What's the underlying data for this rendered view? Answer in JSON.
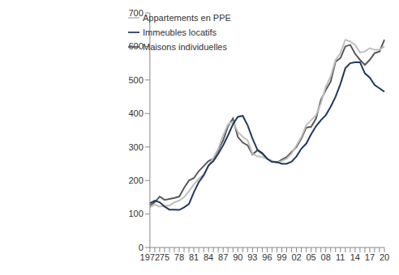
{
  "chart_data": {
    "type": "line",
    "categories": [
      "1972",
      null,
      null,
      "75",
      null,
      null,
      "78",
      null,
      null,
      "81",
      null,
      null,
      "84",
      null,
      null,
      "87",
      null,
      null,
      "90",
      null,
      null,
      "93",
      null,
      null,
      "96",
      null,
      null,
      "99",
      null,
      null,
      "02",
      null,
      null,
      "05",
      null,
      null,
      "08",
      null,
      null,
      "11",
      null,
      null,
      "14",
      null,
      null,
      "17",
      null,
      null,
      "20"
    ],
    "series": [
      {
        "name": "Maisons individuelles",
        "color": "#595959",
        "values": [
          125,
          135,
          152,
          142,
          145,
          148,
          152,
          178,
          200,
          207,
          228,
          243,
          258,
          265,
          290,
          320,
          362,
          385,
          330,
          313,
          305,
          278,
          290,
          280,
          265,
          258,
          253,
          262,
          270,
          285,
          300,
          325,
          358,
          360,
          385,
          440,
          470,
          495,
          555,
          565,
          600,
          605,
          578,
          560,
          545,
          560,
          580,
          585,
          620
        ]
      },
      {
        "name": "Appartements en PPE",
        "color": "#bfbfbf",
        "values": [
          120,
          128,
          122,
          125,
          125,
          135,
          140,
          150,
          168,
          188,
          205,
          218,
          245,
          268,
          295,
          335,
          368,
          375,
          345,
          330,
          320,
          280,
          272,
          270,
          265,
          258,
          255,
          258,
          265,
          280,
          305,
          330,
          365,
          380,
          395,
          430,
          480,
          510,
          560,
          580,
          620,
          615,
          605,
          582,
          585,
          595,
          590,
          590,
          600
        ]
      },
      {
        "name": "Immeubles locatifs",
        "color": "#1f3a5f",
        "values": [
          132,
          140,
          135,
          122,
          113,
          113,
          112,
          120,
          130,
          165,
          195,
          215,
          245,
          258,
          280,
          305,
          335,
          368,
          390,
          393,
          365,
          325,
          292,
          282,
          265,
          255,
          255,
          250,
          250,
          256,
          272,
          295,
          310,
          338,
          362,
          380,
          395,
          420,
          450,
          488,
          535,
          550,
          553,
          553,
          520,
          507,
          485,
          475,
          465
        ]
      }
    ],
    "ylim": [
      0,
      700
    ],
    "yticks": [
      0,
      100,
      200,
      300,
      400,
      500,
      600,
      700
    ],
    "grid": false,
    "legend": "upper left"
  }
}
